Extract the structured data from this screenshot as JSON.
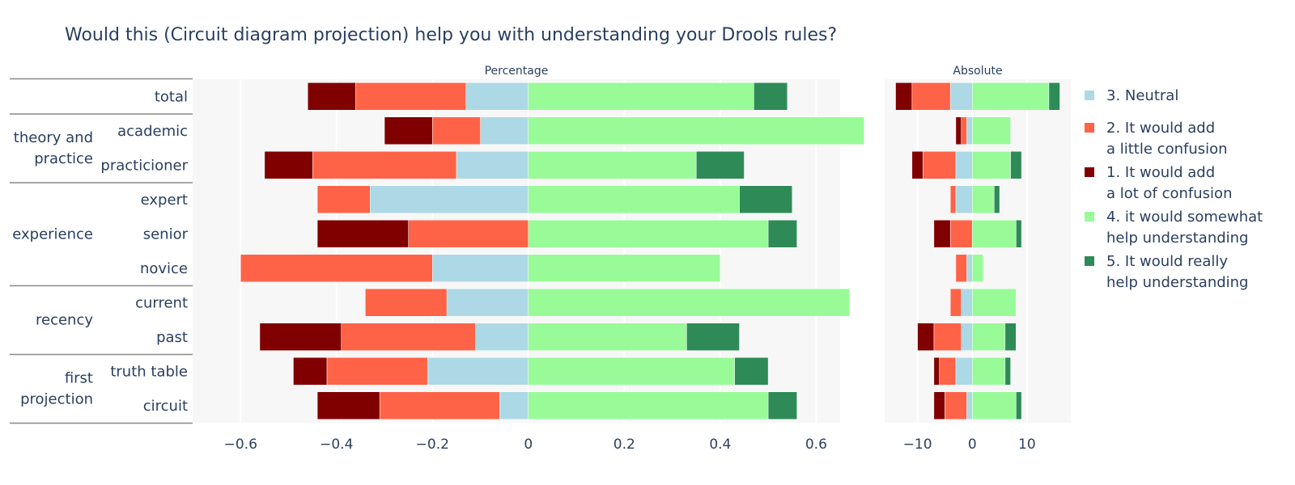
{
  "chart_data": {
    "type": "bar",
    "orientation": "horizontal",
    "barmode": "diverging-stacked",
    "title": "Would this (Circuit diagram projection) help you with understanding your Drools rules?",
    "panels": [
      {
        "id": "pct",
        "title": "Percentage",
        "xlim": [
          -0.7,
          0.65
        ],
        "xticks": [
          -0.6,
          -0.4,
          -0.2,
          0,
          0.2,
          0.4,
          0.6
        ],
        "xtick_labels": [
          "−0.6",
          "−0.4",
          "−0.2",
          "0",
          "0.2",
          "0.4",
          "0.6"
        ]
      },
      {
        "id": "abs",
        "title": "Absolute",
        "xlim": [
          -16,
          18
        ],
        "xticks": [
          -10,
          0,
          10
        ],
        "xtick_labels": [
          "−10",
          "0",
          "10"
        ]
      }
    ],
    "categories": [
      "total",
      "academic",
      "practicioner",
      "expert",
      "senior",
      "novice",
      "current",
      "past",
      "truth table",
      "circuit"
    ],
    "groups": [
      {
        "label": [
          "",
          ""
        ],
        "rows": [
          "total"
        ]
      },
      {
        "label": [
          "theory and",
          "practice"
        ],
        "rows": [
          "academic",
          "practicioner"
        ]
      },
      {
        "label": [
          "experience",
          ""
        ],
        "rows": [
          "expert",
          "senior",
          "novice"
        ]
      },
      {
        "label": [
          "recency",
          ""
        ],
        "rows": [
          "current",
          "past"
        ]
      },
      {
        "label": [
          "first",
          "projection"
        ],
        "rows": [
          "truth table",
          "circuit"
        ]
      }
    ],
    "series": [
      {
        "key": "neutral",
        "name": [
          "3. Neutral",
          ""
        ],
        "color": "#add8e6",
        "side": "neg",
        "pct": [
          0.13,
          0.1,
          0.15,
          0.33,
          0.0,
          0.2,
          0.17,
          0.11,
          0.21,
          0.06
        ],
        "abs": [
          4,
          1,
          3,
          3,
          0,
          1,
          2,
          2,
          3,
          1
        ]
      },
      {
        "key": "little",
        "name": [
          "2. It would add",
          "a little confusion"
        ],
        "color": "#ff6347",
        "side": "neg",
        "pct": [
          0.23,
          0.1,
          0.3,
          0.11,
          0.25,
          0.4,
          0.17,
          0.28,
          0.21,
          0.25
        ],
        "abs": [
          7,
          1,
          6,
          1,
          4,
          2,
          2,
          5,
          3,
          4
        ]
      },
      {
        "key": "lot",
        "name": [
          "1. It would add",
          "a lot of confusion"
        ],
        "color": "#800000",
        "side": "neg",
        "pct": [
          0.1,
          0.1,
          0.1,
          0.0,
          0.19,
          0.0,
          0.0,
          0.17,
          0.07,
          0.13
        ],
        "abs": [
          3,
          1,
          2,
          0,
          3,
          0,
          0,
          3,
          1,
          2
        ]
      },
      {
        "key": "somewhat",
        "name": [
          "4. it would somewhat",
          "help understanding"
        ],
        "color": "#98fb98",
        "side": "pos",
        "pct": [
          0.47,
          0.7,
          0.35,
          0.44,
          0.5,
          0.4,
          0.67,
          0.33,
          0.43,
          0.5
        ],
        "abs": [
          14,
          7,
          7,
          4,
          8,
          2,
          8,
          6,
          6,
          8
        ]
      },
      {
        "key": "really",
        "name": [
          "5. It would really",
          "help understanding"
        ],
        "color": "#2e8b57",
        "side": "pos",
        "pct": [
          0.07,
          0.0,
          0.1,
          0.11,
          0.06,
          0.0,
          0.0,
          0.11,
          0.07,
          0.06
        ],
        "abs": [
          2,
          0,
          2,
          1,
          1,
          0,
          0,
          2,
          1,
          1
        ]
      }
    ],
    "legend_order": [
      "neutral",
      "little",
      "lot",
      "somewhat",
      "really"
    ],
    "legend_placement": "right",
    "grid": true
  }
}
